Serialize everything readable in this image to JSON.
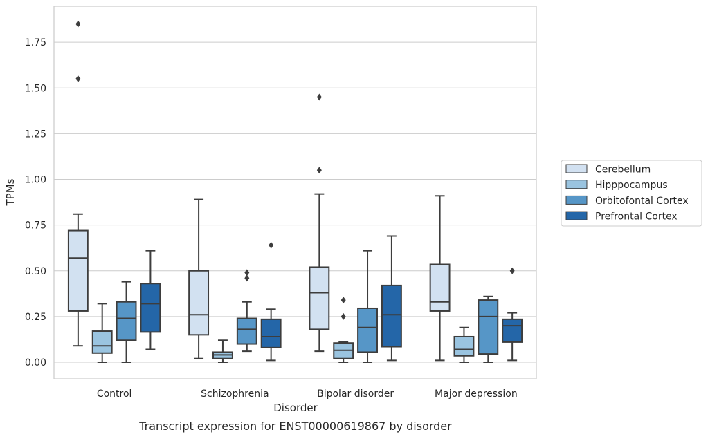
{
  "chart_data": {
    "type": "box",
    "title": "",
    "caption": "Transcript expression for ENST00000619867 by disorder",
    "xlabel": "Disorder",
    "ylabel": "TPMs",
    "categories": [
      "Control",
      "Schizophrenia",
      "Bipolar disorder",
      "Major depression"
    ],
    "ylim": [
      -0.09,
      1.9
    ],
    "yticks": [
      0.0,
      0.25,
      0.5,
      0.75,
      1.0,
      1.25,
      1.5,
      1.75
    ],
    "ytick_labels": [
      "0.00",
      "0.25",
      "0.50",
      "0.75",
      "1.00",
      "1.25",
      "1.50",
      "1.75"
    ],
    "grid": "horizontal",
    "legend_position": "right",
    "series": [
      {
        "name": "Cerebellum",
        "color": "#d2e1f1",
        "boxes": [
          {
            "whisker_low": 0.09,
            "q1": 0.28,
            "median": 0.57,
            "q3": 0.72,
            "whisker_high": 0.81,
            "outliers": [
              1.55,
              1.85
            ]
          },
          {
            "whisker_low": 0.02,
            "q1": 0.15,
            "median": 0.26,
            "q3": 0.5,
            "whisker_high": 0.89,
            "outliers": []
          },
          {
            "whisker_low": 0.06,
            "q1": 0.18,
            "median": 0.38,
            "q3": 0.52,
            "whisker_high": 0.92,
            "outliers": [
              1.05,
              1.45
            ]
          },
          {
            "whisker_low": 0.01,
            "q1": 0.28,
            "median": 0.33,
            "q3": 0.535,
            "whisker_high": 0.91,
            "outliers": []
          }
        ]
      },
      {
        "name": "Hipppocampus",
        "color": "#9ac4e0",
        "boxes": [
          {
            "whisker_low": 0.0,
            "q1": 0.05,
            "median": 0.09,
            "q3": 0.17,
            "whisker_high": 0.32,
            "outliers": []
          },
          {
            "whisker_low": 0.0,
            "q1": 0.02,
            "median": 0.04,
            "q3": 0.055,
            "whisker_high": 0.12,
            "outliers": []
          },
          {
            "whisker_low": 0.0,
            "q1": 0.02,
            "median": 0.065,
            "q3": 0.105,
            "whisker_high": 0.11,
            "outliers": [
              0.25,
              0.34
            ]
          },
          {
            "whisker_low": 0.0,
            "q1": 0.035,
            "median": 0.07,
            "q3": 0.14,
            "whisker_high": 0.19,
            "outliers": []
          }
        ]
      },
      {
        "name": "Orbitofontal Cortex",
        "color": "#5696c7",
        "boxes": [
          {
            "whisker_low": 0.0,
            "q1": 0.12,
            "median": 0.24,
            "q3": 0.33,
            "whisker_high": 0.44,
            "outliers": []
          },
          {
            "whisker_low": 0.06,
            "q1": 0.1,
            "median": 0.18,
            "q3": 0.24,
            "whisker_high": 0.33,
            "outliers": [
              0.46,
              0.49
            ]
          },
          {
            "whisker_low": 0.0,
            "q1": 0.055,
            "median": 0.19,
            "q3": 0.295,
            "whisker_high": 0.61,
            "outliers": []
          },
          {
            "whisker_low": 0.0,
            "q1": 0.045,
            "median": 0.25,
            "q3": 0.34,
            "whisker_high": 0.36,
            "outliers": []
          }
        ]
      },
      {
        "name": "Prefrontal Cortex",
        "color": "#2466a8",
        "boxes": [
          {
            "whisker_low": 0.07,
            "q1": 0.165,
            "median": 0.32,
            "q3": 0.43,
            "whisker_high": 0.61,
            "outliers": []
          },
          {
            "whisker_low": 0.01,
            "q1": 0.08,
            "median": 0.14,
            "q3": 0.235,
            "whisker_high": 0.29,
            "outliers": [
              0.64
            ]
          },
          {
            "whisker_low": 0.01,
            "q1": 0.085,
            "median": 0.26,
            "q3": 0.42,
            "whisker_high": 0.69,
            "outliers": []
          },
          {
            "whisker_low": 0.01,
            "q1": 0.11,
            "median": 0.2,
            "q3": 0.235,
            "whisker_high": 0.27,
            "outliers": [
              0.5
            ]
          }
        ]
      }
    ]
  }
}
